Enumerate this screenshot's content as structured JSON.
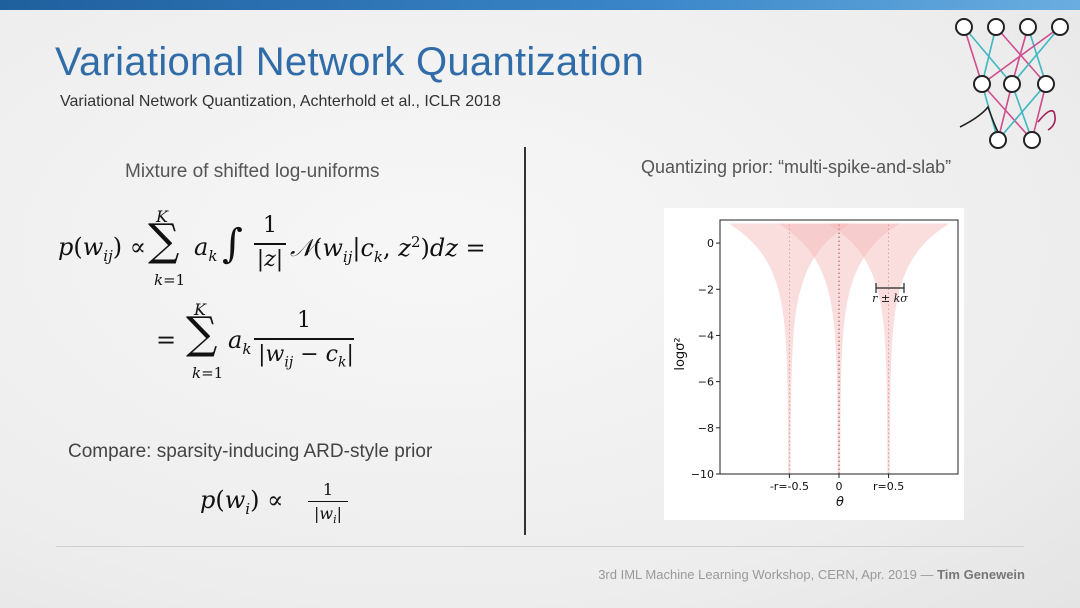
{
  "slide": {
    "title": "Variational Network Quantization",
    "subtitle": "Variational Network Quantization, Achterhold et al., ICLR 2018",
    "left_heading": "Mixture of shifted log-uniforms",
    "compare_text": "Compare: sparsity-inducing ARD-style prior",
    "right_heading": "Quantizing prior: “multi-spike-and-slab”",
    "footer_prefix": "3rd IML Machine Learning Workshop, CERN, Apr. 2019 — ",
    "footer_author": "Tim Genewein",
    "accent_color": "#2f6ca8",
    "topbar_color": "#2f6ca8"
  },
  "chart_data": {
    "type": "area",
    "xlabel": "θ",
    "ylabel": "logσ²",
    "x_tick_labels": [
      "-r=-0.5",
      "0",
      "r=0.5"
    ],
    "x_ticks": [
      -0.5,
      0,
      0.5
    ],
    "y_ticks": [
      0,
      -2,
      -4,
      -6,
      -8,
      -10
    ],
    "xlim": [
      -1.2,
      1.2
    ],
    "ylim": [
      -10,
      1
    ],
    "spike_centers": [
      -0.5,
      0,
      0.5
    ],
    "annotation": "r ± kσ",
    "fill_color": "#f4b6b6",
    "grid": false
  }
}
